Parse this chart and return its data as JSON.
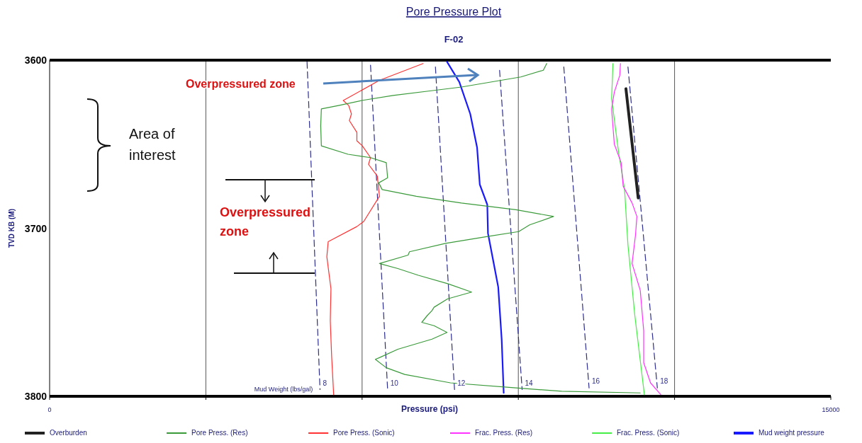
{
  "chart_data": {
    "type": "line",
    "title": "Pore Pressure Plot",
    "subtitle": "F-02",
    "xlabel": "Pressure (psi)",
    "ylabel": "TVD KB (M)",
    "xlim": [
      0,
      15000
    ],
    "xticks": [
      0,
      {
        "value": 3000,
        "label": null
      },
      {
        "value": 6000,
        "label": null
      },
      {
        "value": 9000,
        "label": null
      },
      {
        "value": 12000,
        "label": null
      },
      15000
    ],
    "ylim": [
      3800,
      3600
    ],
    "yticks": [
      3600,
      3700,
      3800
    ],
    "grid": "x",
    "legend": "bottom",
    "marker": "none",
    "annotations": [
      "Overpressured zone",
      "Area of interest",
      "Overpressured zone",
      "Mud Weight (lbs/gal)"
    ],
    "series": [
      {
        "name": "Overburden",
        "color": "#222222",
        "x": [
          11066,
          11302
        ],
        "values": [
          3617,
          3682
        ]
      },
      {
        "name": "Pore Press. (Res)",
        "color": "#3a9a3a",
        "x": [
          9545,
          9480,
          9047,
          7906,
          7382,
          6595,
          5992,
          5546,
          5218,
          5205,
          5218,
          5730,
          6162,
          6464,
          6490,
          6320,
          6385,
          7041,
          7906,
          8431,
          8955,
          9676,
          9217,
          9007,
          8391,
          7604,
          6910,
          6883,
          6333,
          6687,
          7080,
          7644,
          8103,
          7644,
          7382,
          7342,
          7250,
          7146,
          7382,
          7631,
          7342,
          6687,
          6333,
          6254,
          6464,
          6818,
          7696,
          8955,
          9834,
          11341
        ],
        "values": [
          3602,
          3606,
          3610,
          3616,
          3618,
          3621,
          3624,
          3627,
          3629,
          3639,
          3651,
          3656,
          3658,
          3661,
          3670,
          3673,
          3677,
          3681,
          3685,
          3687,
          3689,
          3693,
          3698,
          3702,
          3705,
          3709,
          3714,
          3716,
          3721,
          3724,
          3728,
          3733,
          3738,
          3742,
          3747,
          3749,
          3752,
          3756,
          3758,
          3762,
          3766,
          3772,
          3777,
          3778,
          3783,
          3787,
          3792,
          3795,
          3797,
          3798
        ]
      },
      {
        "name": "Pore Press. (Sonic)",
        "color": "#ff3333",
        "x": [
          7172,
          6333,
          5638,
          5743,
          5795,
          5756,
          5900,
          5900,
          6005,
          6162,
          6123,
          6293,
          6333,
          6031,
          5900,
          5349,
          5323,
          5402,
          5389,
          5415,
          5454
        ],
        "values": [
          3602,
          3612,
          3624,
          3627,
          3632,
          3636,
          3643,
          3648,
          3651,
          3658,
          3662,
          3669,
          3681,
          3696,
          3699,
          3708,
          3717,
          3736,
          3755,
          3776,
          3799
        ]
      },
      {
        "name": "Frac. Press. (Res)",
        "color": "#ff33ff",
        "x": [
          10961,
          10948,
          10843,
          10791,
          10843,
          10974,
          11013,
          11184,
          11276,
          11250,
          11184,
          11341,
          11407,
          11407,
          11538,
          11735
        ],
        "values": [
          3602,
          3609,
          3619,
          3629,
          3650,
          3661,
          3675,
          3685,
          3693,
          3704,
          3721,
          3737,
          3761,
          3780,
          3792,
          3799
        ]
      },
      {
        "name": "Frac. Press. (Sonic)",
        "color": "#44ee44",
        "x": [
          10817,
          10791,
          10922,
          11040,
          11105,
          11237,
          11420
        ],
        "values": [
          3602,
          3623,
          3654,
          3677,
          3710,
          3752,
          3799
        ]
      },
      {
        "name": "Mud weight pressure",
        "color": "#1a1aff",
        "x": [
          7631,
          7867,
          8077,
          8208,
          8260,
          8404,
          8417,
          8522,
          8614,
          8680,
          8719
        ],
        "values": [
          3601,
          3613,
          3632,
          3652,
          3674,
          3686,
          3703,
          3720,
          3735,
          3766,
          3798
        ]
      },
      {
        "name": "8",
        "color": "#2e2e8e",
        "line_style": "dashed",
        "x": [
          4943,
          5192
        ],
        "values": [
          3601,
          3796
        ]
      },
      {
        "name": "10",
        "color": "#2e2e8e",
        "line_style": "dashed",
        "x": [
          6162,
          6490
        ],
        "values": [
          3603,
          3796
        ]
      },
      {
        "name": "12",
        "color": "#2e2e8e",
        "line_style": "dashed",
        "x": [
          7408,
          7775
        ],
        "values": [
          3604,
          3796
        ]
      },
      {
        "name": "14",
        "color": "#2e2e8e",
        "line_style": "dashed",
        "x": [
          8640,
          9073
        ],
        "values": [
          3606,
          3796
        ]
      },
      {
        "name": "16",
        "color": "#2e2e8e",
        "line_style": "dashed",
        "x": [
          9873,
          10358
        ],
        "values": [
          3604,
          3795
        ]
      },
      {
        "name": "18",
        "color": "#2e2e8e",
        "line_style": "dashed",
        "x": [
          11105,
          11669
        ],
        "values": [
          3604,
          3795
        ]
      }
    ]
  }
}
